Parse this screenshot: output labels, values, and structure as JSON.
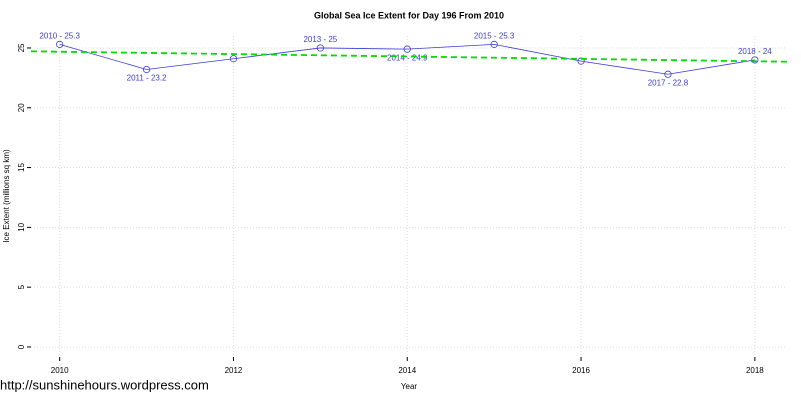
{
  "chart_data": {
    "type": "line",
    "title": "Global Sea Ice Extent for Day 196 From 2010",
    "x_label": "Year",
    "y_label": "Ice Extent (millions sq km)",
    "x": [
      2010,
      2011,
      2012,
      2013,
      2014,
      2015,
      2016,
      2017,
      2018
    ],
    "series": [
      {
        "color": "#3b3bd6",
        "values": [
          25.3,
          23.2,
          24.1,
          25,
          24.9,
          25.3,
          23.9,
          22.8,
          24
        ],
        "value_labels": [
          "2010 - 25.3",
          "2011 - 23.2",
          null,
          "2013 - 25",
          "2014 - 24.9",
          "2015 - 25.3",
          null,
          "2017 - 22.8",
          "2018 - 24"
        ]
      }
    ],
    "trend": {
      "x": [
        2009.67,
        2018.37
      ],
      "values": [
        24.72,
        23.85
      ],
      "color": "#00dd00"
    },
    "xlim": [
      2009.67,
      2018.37
    ],
    "xticks": [
      2010,
      2012,
      2014,
      2016,
      2018
    ],
    "ylim": [
      -0.84,
      26.0
    ],
    "yticks": [
      0,
      5,
      10,
      15,
      20,
      25
    ],
    "grid": true
  },
  "footer": "http://sunshinehours.wordpress.com"
}
